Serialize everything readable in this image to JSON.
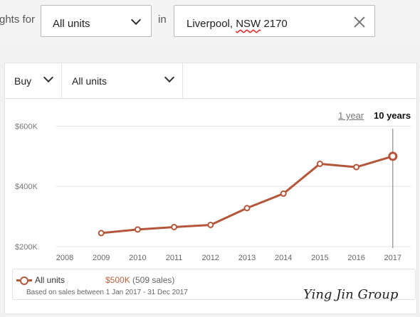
{
  "search": {
    "prefix_label": "ghts for",
    "property_type": "All units",
    "in_label": "in",
    "location_main": "Liverpool, ",
    "location_nsw": "NSW",
    "location_code": " 2170"
  },
  "filters": {
    "listing_type": "Buy",
    "property_type": "All units"
  },
  "time_range": {
    "options": [
      "1 year",
      "10 years"
    ],
    "selected": "10 years"
  },
  "colors": {
    "series": "#b4563a",
    "value_text": "#c0603f"
  },
  "chart_data": {
    "type": "line",
    "x": [
      "2008",
      "2009",
      "2010",
      "2011",
      "2012",
      "2013",
      "2014",
      "2015",
      "2016",
      "2017"
    ],
    "series": [
      {
        "name": "All units",
        "values": [
          null,
          245000,
          257000,
          265000,
          272000,
          328000,
          376000,
          475000,
          464000,
          500000
        ]
      }
    ],
    "ylim": [
      200000,
      620000
    ],
    "y_ticks": [
      {
        "value": 200000,
        "label": "$200K"
      },
      {
        "value": 400000,
        "label": "$400K"
      },
      {
        "value": 600000,
        "label": "$600K"
      }
    ],
    "highlight_x": "2017",
    "grid": true
  },
  "legend": {
    "series_name": "All units",
    "value": "$500K",
    "sales": "(509 sales)",
    "note": "Based on sales between 1 Jan 2017 - 31 Dec 2017"
  },
  "watermark": "Ying Jin Group"
}
